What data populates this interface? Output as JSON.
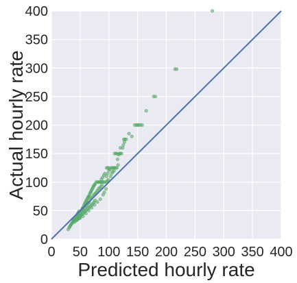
{
  "chart_data": {
    "type": "scatter",
    "title": "",
    "xlabel": "Predicted hourly rate",
    "ylabel": "Actual hourly rate",
    "xlim": [
      0,
      400
    ],
    "ylim": [
      0,
      400
    ],
    "xticks": [
      0,
      50,
      100,
      150,
      200,
      250,
      300,
      350,
      400
    ],
    "yticks": [
      0,
      50,
      100,
      150,
      200,
      250,
      300,
      350,
      400
    ],
    "grid": true,
    "background_color": "#eaeaf2",
    "point_color": "#55a868",
    "line_color": "#4c72b0",
    "reference_line": {
      "x": [
        0,
        400
      ],
      "y": [
        0,
        400
      ]
    },
    "points": [
      [
        29,
        17
      ],
      [
        31,
        20
      ],
      [
        32,
        22
      ],
      [
        33,
        24
      ],
      [
        34,
        25
      ],
      [
        35,
        27
      ],
      [
        36,
        28
      ],
      [
        37,
        30
      ],
      [
        38,
        31
      ],
      [
        38,
        33
      ],
      [
        39,
        35
      ],
      [
        40,
        36
      ],
      [
        41,
        34
      ],
      [
        42,
        38
      ],
      [
        43,
        40
      ],
      [
        44,
        41
      ],
      [
        45,
        43
      ],
      [
        46,
        45
      ],
      [
        47,
        47
      ],
      [
        48,
        49
      ],
      [
        46,
        38
      ],
      [
        49,
        42
      ],
      [
        50,
        45
      ],
      [
        51,
        48
      ],
      [
        52,
        50
      ],
      [
        53,
        52
      ],
      [
        54,
        54
      ],
      [
        55,
        55
      ],
      [
        56,
        57
      ],
      [
        57,
        60
      ],
      [
        58,
        62
      ],
      [
        59,
        64
      ],
      [
        60,
        66
      ],
      [
        61,
        68
      ],
      [
        62,
        70
      ],
      [
        63,
        72
      ],
      [
        64,
        74
      ],
      [
        65,
        75
      ],
      [
        66,
        77
      ],
      [
        67,
        80
      ],
      [
        68,
        82
      ],
      [
        69,
        84
      ],
      [
        70,
        86
      ],
      [
        71,
        88
      ],
      [
        72,
        90
      ],
      [
        73,
        92
      ],
      [
        74,
        94
      ],
      [
        75,
        95
      ],
      [
        76,
        97
      ],
      [
        78,
        100
      ],
      [
        80,
        100
      ],
      [
        82,
        100
      ],
      [
        84,
        100
      ],
      [
        86,
        100
      ],
      [
        88,
        100
      ],
      [
        90,
        100
      ],
      [
        92,
        100
      ],
      [
        56,
        50
      ],
      [
        58,
        55
      ],
      [
        60,
        58
      ],
      [
        62,
        60
      ],
      [
        64,
        63
      ],
      [
        66,
        65
      ],
      [
        68,
        70
      ],
      [
        70,
        72
      ],
      [
        72,
        75
      ],
      [
        74,
        78
      ],
      [
        76,
        80
      ],
      [
        78,
        82
      ],
      [
        80,
        85
      ],
      [
        82,
        88
      ],
      [
        84,
        90
      ],
      [
        86,
        92
      ],
      [
        88,
        95
      ],
      [
        45,
        35
      ],
      [
        48,
        38
      ],
      [
        50,
        40
      ],
      [
        52,
        42
      ],
      [
        54,
        44
      ],
      [
        56,
        46
      ],
      [
        58,
        48
      ],
      [
        60,
        50
      ],
      [
        62,
        52
      ],
      [
        64,
        54
      ],
      [
        66,
        56
      ],
      [
        68,
        58
      ],
      [
        70,
        60
      ],
      [
        72,
        62
      ],
      [
        74,
        65
      ],
      [
        76,
        68
      ],
      [
        40,
        30
      ],
      [
        42,
        32
      ],
      [
        44,
        33
      ],
      [
        46,
        35
      ],
      [
        48,
        36
      ],
      [
        50,
        37
      ],
      [
        55,
        40
      ],
      [
        60,
        45
      ],
      [
        65,
        50
      ],
      [
        70,
        55
      ],
      [
        75,
        60
      ],
      [
        80,
        65
      ],
      [
        85,
        70
      ],
      [
        90,
        78
      ],
      [
        92,
        82
      ],
      [
        95,
        88
      ],
      [
        96,
        110
      ],
      [
        98,
        115
      ],
      [
        100,
        120
      ],
      [
        102,
        122
      ],
      [
        104,
        125
      ],
      [
        106,
        125
      ],
      [
        108,
        125
      ],
      [
        110,
        125
      ],
      [
        112,
        125
      ],
      [
        100,
        125
      ],
      [
        98,
        125
      ],
      [
        96,
        125
      ],
      [
        114,
        125
      ],
      [
        116,
        130
      ],
      [
        115,
        140
      ],
      [
        117,
        148
      ],
      [
        110,
        150
      ],
      [
        112,
        150
      ],
      [
        114,
        150
      ],
      [
        118,
        150
      ],
      [
        120,
        150
      ],
      [
        122,
        150
      ],
      [
        120,
        160
      ],
      [
        125,
        165
      ],
      [
        127,
        170
      ],
      [
        124,
        160
      ],
      [
        126,
        175
      ],
      [
        128,
        175
      ],
      [
        130,
        175
      ],
      [
        140,
        180
      ],
      [
        135,
        185
      ],
      [
        145,
        200
      ],
      [
        148,
        200
      ],
      [
        150,
        200
      ],
      [
        152,
        200
      ],
      [
        155,
        200
      ],
      [
        158,
        200
      ],
      [
        165,
        225
      ],
      [
        178,
        250
      ],
      [
        181,
        250
      ],
      [
        215,
        298
      ],
      [
        218,
        298
      ],
      [
        85,
        100
      ],
      [
        87,
        105
      ],
      [
        89,
        108
      ],
      [
        91,
        112
      ],
      [
        93,
        115
      ],
      [
        95,
        100
      ],
      [
        97,
        102
      ],
      [
        99,
        104
      ],
      [
        103,
        110
      ],
      [
        105,
        115
      ],
      [
        107,
        118
      ],
      [
        109,
        120
      ],
      [
        280,
        400
      ]
    ]
  }
}
